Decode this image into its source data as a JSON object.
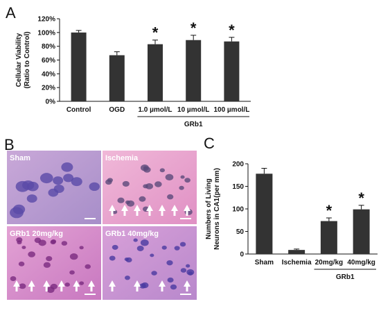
{
  "panels": {
    "a": "A",
    "b": "B",
    "c": "C"
  },
  "chart_data": [
    {
      "id": "A",
      "type": "bar",
      "categories": [
        "Control",
        "OGD",
        "1.0 µmol/L",
        "10 µmol/L",
        "100 µmol/L"
      ],
      "values": [
        100,
        67,
        83,
        89,
        87
      ],
      "errors": [
        3,
        5,
        6,
        7,
        6
      ],
      "ylabel": "Cellular Viability\n(Ratio to Control)",
      "ylim": [
        0,
        120
      ],
      "yticks": [
        "0%",
        "20%",
        "40%",
        "60%",
        "80%",
        "100%",
        "120%"
      ],
      "group_label": "GRb1",
      "annotations": [
        "",
        "",
        "*",
        "*",
        "*"
      ],
      "bar_color": "#333333",
      "grid": false
    },
    {
      "id": "C",
      "type": "bar",
      "categories": [
        "Sham",
        "Ischemia",
        "20mg/kg",
        "40mg/kg"
      ],
      "values": [
        178,
        9,
        73,
        99
      ],
      "errors": [
        12,
        2,
        7,
        9
      ],
      "ylabel": "Numbers of Living\nNeurons in CA1(per mm)",
      "ylim": [
        0,
        200
      ],
      "yticks": [
        "0",
        "50",
        "100",
        "150",
        "200"
      ],
      "group_label": "GRb1",
      "annotations": [
        "",
        "",
        "*",
        "*"
      ],
      "bar_color": "#333333",
      "grid": false
    }
  ],
  "micrographs": [
    {
      "label": "Sham",
      "arrows": 0
    },
    {
      "label": "Ischemia",
      "arrows": 7
    },
    {
      "label": "GRb1 20mg/kg",
      "arrows": 6
    },
    {
      "label": "GRb1 40mg/kg",
      "arrows": 4
    }
  ],
  "colors": {
    "bar": "#333333",
    "micrograph_pink": "#d98fc6",
    "micrograph_purple": "#6a4ca8"
  }
}
